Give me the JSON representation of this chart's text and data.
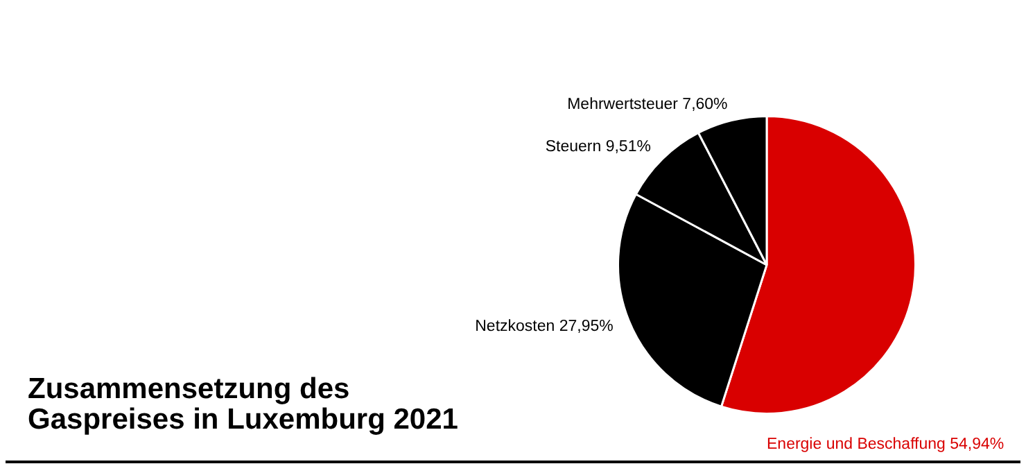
{
  "chart_data": {
    "type": "pie",
    "title": "Zusammensetzung des Gaspreises in Luxemburg 2021",
    "categories": [
      "Energie und Beschaffung",
      "Netzkosten",
      "Steuern",
      "Mehrwertsteuer"
    ],
    "values": [
      54.94,
      27.95,
      9.51,
      7.6
    ],
    "colors": [
      "#d90000",
      "#000000",
      "#000000",
      "#000000"
    ],
    "value_labels": [
      "54,94%",
      "27,95%",
      "9,51%",
      "7,60%"
    ],
    "legend": false
  }
}
